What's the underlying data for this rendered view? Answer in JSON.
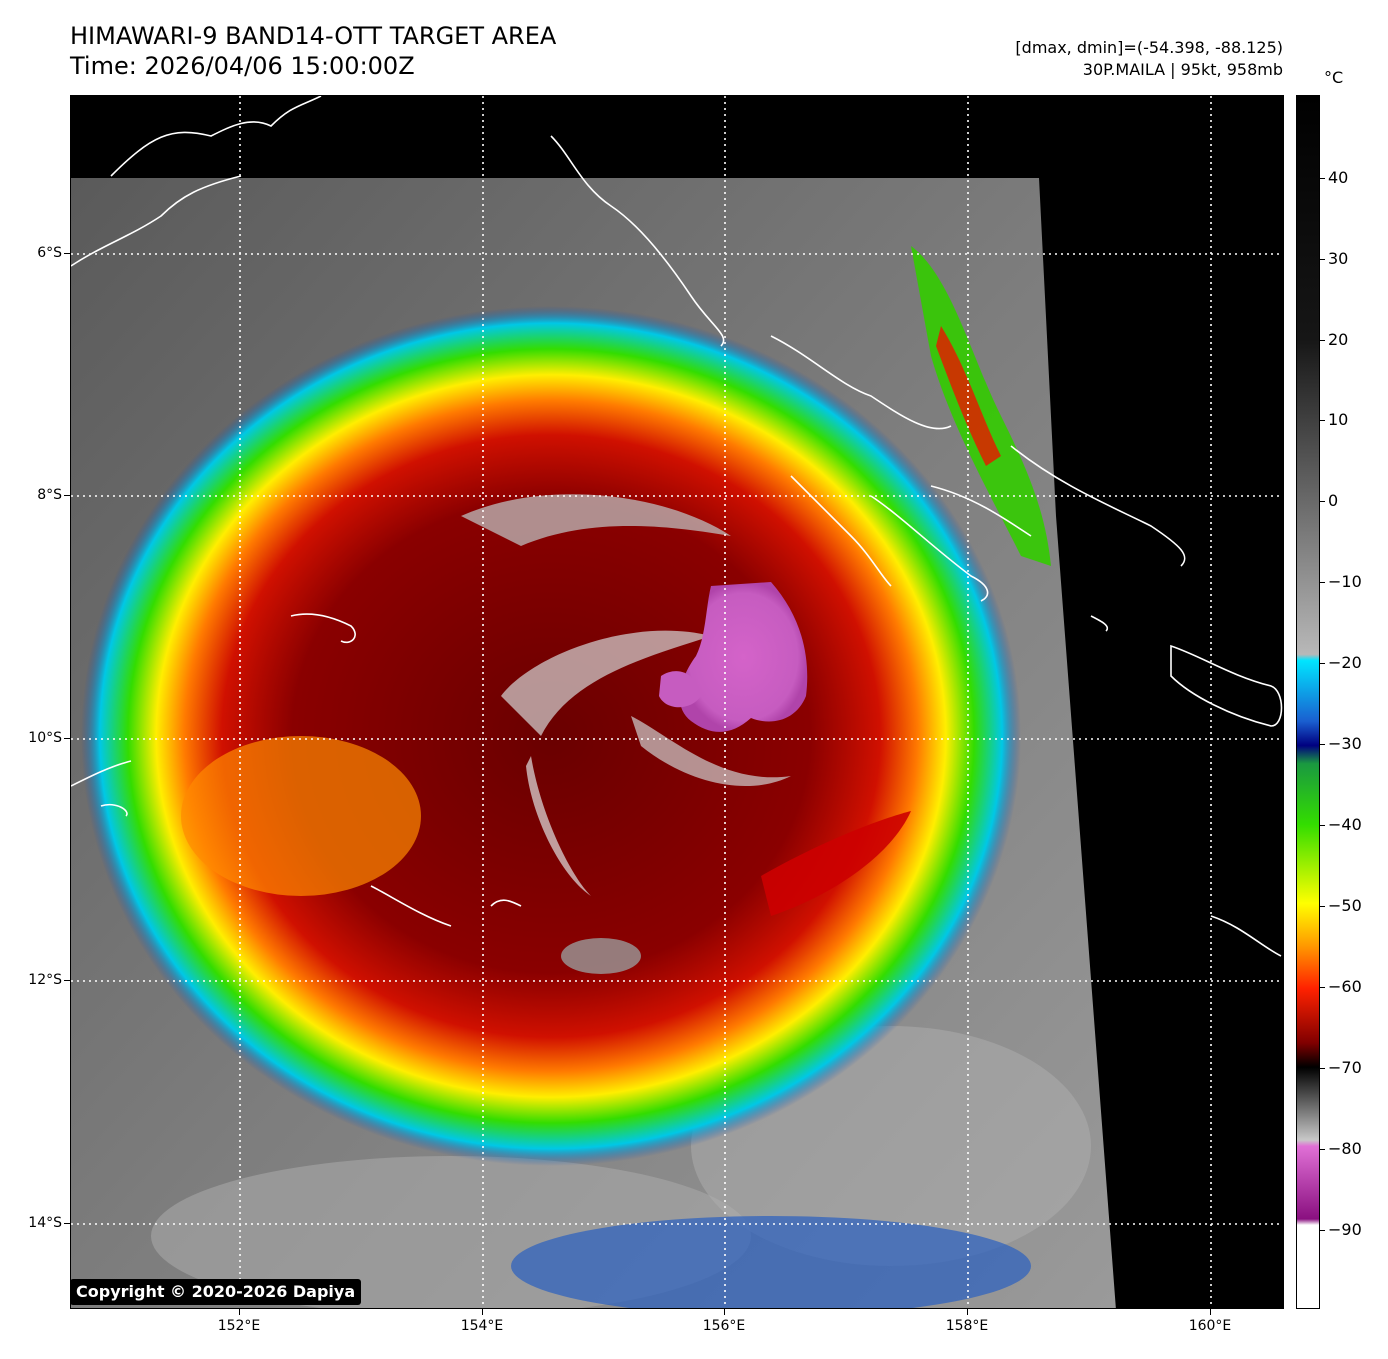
{
  "title_line1": "HIMAWARI-9 BAND14-OTT TARGET AREA",
  "title_line2": "Time: 2026/04/06 15:00:00Z",
  "info_line1": "[dmax, dmin]=(-54.398, -88.125)",
  "info_line2": "30P.MAILA | 95kt, 958mb",
  "copyright": "Copyright © 2020-2026 Dapiya",
  "colorbar_unit": "°C",
  "lat_labels": [
    "6°S",
    "8°S",
    "10°S",
    "12°S",
    "14°S"
  ],
  "lon_labels": [
    "152°E",
    "154°E",
    "156°E",
    "158°E",
    "160°E"
  ],
  "colorbar_labels": [
    "40",
    "30",
    "20",
    "10",
    "0",
    "−10",
    "−20",
    "−30",
    "−40",
    "−50",
    "−60",
    "−70",
    "−80",
    "−90"
  ],
  "colors": {
    "space": "#000000",
    "coastline": "#ffffff",
    "eye_magenta": "#d463c9",
    "cloud_red": "#cc0000",
    "ring_green": "#33dd00",
    "ring_cyan": "#00c8e6",
    "ring_yellow": "#ffee00"
  }
}
